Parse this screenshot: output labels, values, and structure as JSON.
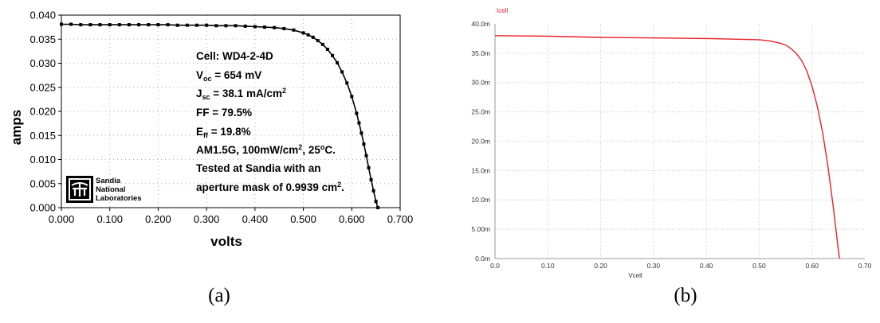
{
  "chart_data": [
    {
      "type": "line",
      "caption": "(a)",
      "xlabel": "volts",
      "ylabel": "amps",
      "xlim": [
        0.0,
        0.7
      ],
      "ylim": [
        0.0,
        0.04
      ],
      "x_ticks": [
        "0.000",
        "0.100",
        "0.200",
        "0.300",
        "0.400",
        "0.500",
        "0.600",
        "0.700"
      ],
      "y_ticks": [
        "0.000",
        "0.005",
        "0.010",
        "0.015",
        "0.020",
        "0.025",
        "0.030",
        "0.035",
        "0.040"
      ],
      "grid": "dotted",
      "markers": true,
      "series": [
        {
          "x": [
            0.0,
            0.02,
            0.04,
            0.06,
            0.08,
            0.1,
            0.12,
            0.14,
            0.16,
            0.18,
            0.2,
            0.22,
            0.24,
            0.26,
            0.28,
            0.3,
            0.32,
            0.34,
            0.36,
            0.38,
            0.4,
            0.42,
            0.44,
            0.46,
            0.48,
            0.5,
            0.51,
            0.52,
            0.53,
            0.54,
            0.55,
            0.56,
            0.57,
            0.58,
            0.59,
            0.6,
            0.61,
            0.615,
            0.62,
            0.625,
            0.63,
            0.635,
            0.64,
            0.645,
            0.65,
            0.654
          ],
          "values": [
            0.0381,
            0.0381,
            0.038,
            0.038,
            0.038,
            0.038,
            0.038,
            0.038,
            0.038,
            0.038,
            0.038,
            0.038,
            0.0379,
            0.0379,
            0.0379,
            0.0379,
            0.0378,
            0.0378,
            0.0378,
            0.0377,
            0.0376,
            0.0375,
            0.0374,
            0.0372,
            0.0369,
            0.0363,
            0.0359,
            0.0354,
            0.0347,
            0.0339,
            0.0329,
            0.0316,
            0.0301,
            0.0282,
            0.0259,
            0.0231,
            0.0196,
            0.0176,
            0.0155,
            0.0132,
            0.0108,
            0.0083,
            0.0058,
            0.0035,
            0.0013,
            0.0
          ]
        }
      ],
      "annotation": {
        "cell": "Cell: WD4-2-4D",
        "voc": {
          "sym": "V",
          "sub": "oc",
          "rest": " = 654 mV"
        },
        "jsc": {
          "sym": "J",
          "sub": "sc",
          "rest": " = 38.1 mA/cm",
          "sup": "2"
        },
        "ff": "FF = 79.5%",
        "eff": {
          "sym": "E",
          "sub": "ff",
          "rest": " = 19.8%"
        },
        "cond": {
          "pre": "AM1.5G, 100mW/cm",
          "sup": "2",
          "mid": ", 25",
          "sup2": "o",
          "post": "C."
        },
        "tested": "Tested at Sandia with an",
        "aperture": {
          "pre": "aperture mask of 0.9939 cm",
          "sup": "2",
          "post": "."
        }
      },
      "logo": {
        "lines": [
          "Sandia",
          "National",
          "Laboratories"
        ]
      }
    },
    {
      "type": "line",
      "caption": "(b)",
      "xlabel": "Vcell",
      "ylabel": "Icell",
      "xlim": [
        0.0,
        0.7
      ],
      "ylim": [
        0.0,
        40.0
      ],
      "x_ticks": [
        "0.0",
        "0.10",
        "0.20",
        "0.30",
        "0.40",
        "0.50",
        "0.60",
        "0.70"
      ],
      "y_ticks": [
        "0.0m",
        "5.00m",
        "10.0m",
        "15.0m",
        "20.0m",
        "25.0m",
        "30.0m",
        "35.0m",
        "40.0m"
      ],
      "grid": "dotted",
      "line_color": "#e8202a",
      "series": [
        {
          "x": [
            0.0,
            0.1,
            0.2,
            0.3,
            0.4,
            0.45,
            0.5,
            0.52,
            0.54,
            0.55,
            0.56,
            0.57,
            0.58,
            0.59,
            0.6,
            0.61,
            0.62,
            0.63,
            0.64,
            0.645,
            0.65,
            0.652
          ],
          "values": [
            38.0,
            37.9,
            37.7,
            37.6,
            37.5,
            37.4,
            37.3,
            37.1,
            36.7,
            36.4,
            35.8,
            35.0,
            33.8,
            32.0,
            29.4,
            26.0,
            21.5,
            15.8,
            9.0,
            5.2,
            1.3,
            0.0
          ]
        }
      ]
    }
  ]
}
